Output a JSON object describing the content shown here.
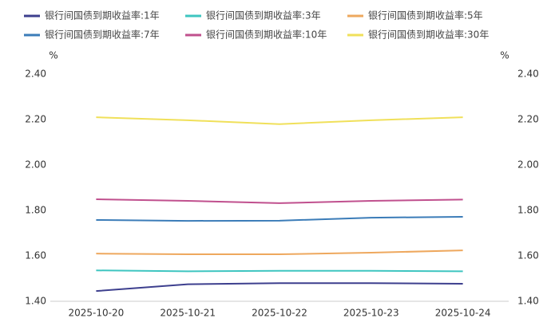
{
  "chart_data": {
    "type": "line",
    "y_unit": "%",
    "categories": [
      "2025-10-20",
      "2025-10-21",
      "2025-10-22",
      "2025-10-23",
      "2025-10-24"
    ],
    "series": [
      {
        "name": "银行间国债到期收益率:1年",
        "color": "#3d3f8e",
        "values": [
          1.445,
          1.475,
          1.48,
          1.48,
          1.477
        ]
      },
      {
        "name": "银行间国债到期收益率:3年",
        "color": "#3ec5c0",
        "values": [
          1.536,
          1.532,
          1.534,
          1.534,
          1.532
        ]
      },
      {
        "name": "银行间国债到期收益率:5年",
        "color": "#eea85e",
        "values": [
          1.61,
          1.607,
          1.607,
          1.614,
          1.624
        ]
      },
      {
        "name": "银行间国债到期收益率:7年",
        "color": "#3b7cb8",
        "values": [
          1.758,
          1.754,
          1.755,
          1.768,
          1.772
        ]
      },
      {
        "name": "银行间国债到期收益率:10年",
        "color": "#c0508e",
        "values": [
          1.849,
          1.842,
          1.832,
          1.842,
          1.848
        ]
      },
      {
        "name": "银行间国债到期收益率:30年",
        "color": "#f0e05a",
        "values": [
          2.21,
          2.197,
          2.18,
          2.197,
          2.21
        ]
      }
    ],
    "ylim": [
      1.4,
      2.4
    ],
    "yticks": [
      {
        "value": 1.4,
        "label": "1.40"
      },
      {
        "value": 1.6,
        "label": "1.60"
      },
      {
        "value": 1.8,
        "label": "1.80"
      },
      {
        "value": 2.0,
        "label": "2.00"
      },
      {
        "value": 2.2,
        "label": "2.20"
      },
      {
        "value": 2.4,
        "label": "2.40"
      }
    ],
    "y2lim": [
      1.4,
      2.4
    ],
    "y2ticks": [
      {
        "value": 1.4,
        "label": "1.40"
      },
      {
        "value": 1.6,
        "label": "1.60"
      },
      {
        "value": 1.8,
        "label": "1.80"
      },
      {
        "value": 2.0,
        "label": "2.00"
      },
      {
        "value": 2.2,
        "label": "2.20"
      },
      {
        "value": 2.4,
        "label": "2.40"
      }
    ],
    "grid": false,
    "legend": "top"
  }
}
